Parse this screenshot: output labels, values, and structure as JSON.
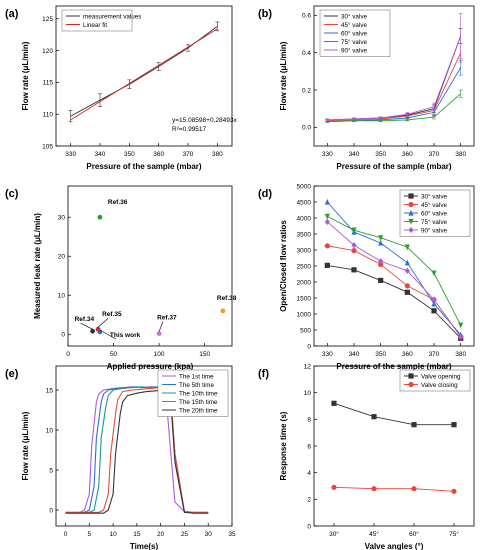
{
  "chart_data": [
    {
      "panel": "(a)",
      "type": "line",
      "xlabel": "Pressure of the sample (mbar)",
      "ylabel": "Flow rate (μL/min)",
      "xlim": [
        325,
        385
      ],
      "ylim": [
        105,
        127
      ],
      "xticks": [
        330,
        340,
        350,
        360,
        370,
        380
      ],
      "yticks": [
        105,
        110,
        115,
        120,
        125
      ],
      "legend_position": "top-left",
      "annotation": [
        "y=15.08598+0.28493x",
        "R²=0.99517"
      ],
      "series": [
        {
          "name": "measurement values",
          "color": "#333333",
          "marker": "none",
          "x": [
            330,
            340,
            350,
            360,
            370,
            380
          ],
          "y": [
            109.7,
            112.2,
            114.7,
            117.5,
            120.4,
            123.8
          ],
          "err": [
            0.9,
            1.0,
            0.7,
            0.6,
            0.5,
            0.7
          ]
        },
        {
          "name": "Linear fit",
          "color": "#d62728",
          "marker": "none",
          "x": [
            330,
            380
          ],
          "y": [
            109.1,
            123.4
          ]
        }
      ]
    },
    {
      "panel": "(b)",
      "type": "line",
      "xlabel": "Pressure of the sample (mbar)",
      "ylabel": "Flow rate (μL/min)",
      "xlim": [
        325,
        385
      ],
      "ylim": [
        -0.1,
        0.65
      ],
      "xticks": [
        330,
        340,
        350,
        360,
        370,
        380
      ],
      "yticks": [
        0.0,
        0.2,
        0.4,
        0.6
      ],
      "legend_position": "top-left",
      "series": [
        {
          "name": "30° valve",
          "color": "#333333",
          "marker": "none",
          "x": [
            330,
            340,
            350,
            360,
            370,
            380
          ],
          "y": [
            0.04,
            0.045,
            0.05,
            0.065,
            0.1,
            0.49
          ],
          "err": [
            0.005,
            0.005,
            0.005,
            0.01,
            0.02,
            0.04
          ]
        },
        {
          "name": "45° valve",
          "color": "#e8473b",
          "marker": "none",
          "x": [
            330,
            340,
            350,
            360,
            370,
            380
          ],
          "y": [
            0.035,
            0.04,
            0.045,
            0.06,
            0.09,
            0.4
          ],
          "err": [
            0.005,
            0.005,
            0.005,
            0.01,
            0.02,
            0.05
          ]
        },
        {
          "name": "60° valve",
          "color": "#2c6fd6",
          "marker": "none",
          "x": [
            330,
            340,
            350,
            360,
            370,
            380
          ],
          "y": [
            0.03,
            0.035,
            0.04,
            0.05,
            0.08,
            0.32
          ],
          "err": [
            0.005,
            0.005,
            0.005,
            0.01,
            0.02,
            0.04
          ]
        },
        {
          "name": "75° valve",
          "color": "#2ca02c",
          "marker": "none",
          "x": [
            330,
            340,
            350,
            360,
            370,
            380
          ],
          "y": [
            0.03,
            0.035,
            0.035,
            0.04,
            0.055,
            0.18
          ],
          "err": [
            0.005,
            0.005,
            0.005,
            0.005,
            0.01,
            0.02
          ]
        },
        {
          "name": "90° valve",
          "color": "#b259d9",
          "marker": "none",
          "x": [
            330,
            340,
            350,
            360,
            370,
            380
          ],
          "y": [
            0.04,
            0.045,
            0.05,
            0.07,
            0.11,
            0.49
          ],
          "err": [
            0.005,
            0.005,
            0.005,
            0.01,
            0.02,
            0.12
          ]
        }
      ]
    },
    {
      "panel": "(c)",
      "type": "scatter",
      "xlabel": "Applied pressure (kpa)",
      "ylabel": "Measured leak rate (μL/min)",
      "xlim": [
        0,
        180
      ],
      "ylim": [
        -3,
        38
      ],
      "xticks": [
        0,
        50,
        100,
        150
      ],
      "yticks": [
        0,
        10,
        20,
        30
      ],
      "points": [
        {
          "label": "Ref.34",
          "x": 27,
          "y": 0.8,
          "color": "#333333"
        },
        {
          "label": "Ref.35",
          "x": 33,
          "y": 1.3,
          "color": "#d62728"
        },
        {
          "label": "This work",
          "x": 35,
          "y": 0.6,
          "color": "#2c6fd6"
        },
        {
          "label": "Ref.36",
          "x": 35,
          "y": 30,
          "color": "#2ca02c"
        },
        {
          "label": "Ref.37",
          "x": 100,
          "y": 0.2,
          "color": "#d06ce0"
        },
        {
          "label": "Ref.38",
          "x": 170,
          "y": 6,
          "color": "#f0a020"
        }
      ]
    },
    {
      "panel": "(d)",
      "type": "line",
      "xlabel": "Pressure of the sample (mbar)",
      "ylabel": "Open/Closed flow ratios",
      "xlim": [
        325,
        385
      ],
      "ylim": [
        0,
        5000
      ],
      "xticks": [
        330,
        340,
        350,
        360,
        370,
        380
      ],
      "yticks": [
        0,
        500,
        1000,
        1500,
        2000,
        2500,
        3000,
        3500,
        4000,
        4500,
        5000
      ],
      "legend_position": "top-right",
      "series": [
        {
          "name": "30° valve",
          "color": "#333333",
          "marker": "square",
          "x": [
            330,
            340,
            350,
            360,
            370,
            380
          ],
          "y": [
            2520,
            2380,
            2050,
            1680,
            1100,
            240
          ]
        },
        {
          "name": "45° valve",
          "color": "#e8473b",
          "marker": "circle",
          "x": [
            330,
            340,
            350,
            360,
            370,
            380
          ],
          "y": [
            3130,
            2980,
            2550,
            1880,
            1450,
            290
          ]
        },
        {
          "name": "60° valve",
          "color": "#2c6fd6",
          "marker": "triangle-up",
          "x": [
            330,
            340,
            350,
            360,
            370,
            380
          ],
          "y": [
            4500,
            3560,
            3220,
            2600,
            1320,
            350
          ]
        },
        {
          "name": "75° valve",
          "color": "#2ca02c",
          "marker": "triangle-down",
          "x": [
            330,
            340,
            350,
            360,
            370,
            380
          ],
          "y": [
            4050,
            3620,
            3380,
            3090,
            2280,
            650
          ]
        },
        {
          "name": "90° valve",
          "color": "#b259d9",
          "marker": "diamond",
          "x": [
            330,
            340,
            350,
            360,
            370,
            380
          ],
          "y": [
            3880,
            3150,
            2650,
            2350,
            1450,
            280
          ]
        }
      ]
    },
    {
      "panel": "(e)",
      "type": "line",
      "xlabel": "Time(s)",
      "ylabel": "Flow rate (μL/min)",
      "xlim": [
        -2,
        35
      ],
      "ylim": [
        -2,
        18
      ],
      "xticks": [
        0,
        5,
        10,
        15,
        20,
        25,
        30,
        35
      ],
      "yticks": [
        0,
        5,
        10,
        15
      ],
      "legend_position": "top-right",
      "series": [
        {
          "name": "The 1st time",
          "color": "#b259d9",
          "marker": "none",
          "x": [
            0,
            3,
            4,
            5,
            5.5,
            6.5,
            7,
            8,
            10,
            12,
            14,
            16,
            18,
            20,
            21,
            22,
            23,
            25,
            27,
            30
          ],
          "y": [
            -0.3,
            -0.3,
            0,
            2,
            8,
            13.5,
            14.5,
            15,
            15.2,
            15.3,
            15.4,
            15.3,
            15.4,
            15.3,
            15.2,
            8,
            1,
            -0.2,
            -0.3,
            -0.3
          ]
        },
        {
          "name": "The 5th time",
          "color": "#2c6fd6",
          "marker": "none",
          "x": [
            0,
            4,
            5,
            6,
            6.5,
            7.5,
            8,
            9,
            11,
            13,
            15,
            17,
            19,
            21,
            22,
            23,
            25,
            27,
            30
          ],
          "y": [
            -0.3,
            -0.3,
            0,
            3,
            9,
            13.5,
            14.5,
            15,
            15.2,
            15.3,
            15.4,
            15.3,
            15.4,
            15.3,
            15.2,
            7,
            -0.2,
            -0.3,
            -0.3
          ]
        },
        {
          "name": "The 10th time",
          "color": "#1a9a8a",
          "marker": "none",
          "x": [
            0,
            5,
            6,
            7,
            7.5,
            8.5,
            9,
            10,
            12,
            14,
            16,
            18,
            20,
            21,
            22,
            23,
            25,
            27,
            30
          ],
          "y": [
            -0.3,
            -0.3,
            0,
            3,
            9,
            13,
            14.3,
            15,
            15.2,
            15.3,
            15.4,
            15.3,
            15.4,
            15.3,
            15.2,
            7,
            -0.2,
            -0.3,
            -0.3
          ]
        },
        {
          "name": "The 15th time",
          "color": "#e84a3b",
          "marker": "none",
          "x": [
            0,
            7,
            8,
            9,
            9.5,
            10.5,
            11,
            12,
            14,
            16,
            18,
            20,
            21,
            22,
            23,
            25,
            27,
            30
          ],
          "y": [
            -0.3,
            -0.3,
            0,
            2,
            7,
            12,
            13.8,
            14.8,
            15,
            15.1,
            15.2,
            15.3,
            15.2,
            15,
            7,
            -0.2,
            -0.3,
            -0.3
          ]
        },
        {
          "name": "The 20th time",
          "color": "#333333",
          "marker": "none",
          "x": [
            0,
            8,
            9,
            10,
            10.5,
            11.5,
            12,
            13,
            15,
            17,
            19,
            21,
            22,
            23,
            25,
            27,
            30
          ],
          "y": [
            -0.4,
            -0.4,
            0,
            2,
            7,
            12,
            13.5,
            14.3,
            14.6,
            14.8,
            14.9,
            15,
            14.8,
            6,
            -0.3,
            -0.4,
            -0.4
          ]
        }
      ]
    },
    {
      "panel": "(f)",
      "type": "line",
      "xlabel": "Valve angles (°)",
      "ylabel": "Response time (s)",
      "categories": [
        "30°",
        "45°",
        "60°",
        "75°"
      ],
      "ylim": [
        0,
        12
      ],
      "yticks": [
        0,
        2,
        4,
        6,
        8,
        10,
        12
      ],
      "legend_position": "top-right",
      "series": [
        {
          "name": "Valve opening",
          "color": "#333333",
          "marker": "square",
          "values": [
            9.2,
            8.2,
            7.6,
            7.6
          ]
        },
        {
          "name": "Valve closing",
          "color": "#e8473b",
          "marker": "circle",
          "values": [
            2.9,
            2.8,
            2.8,
            2.6
          ]
        }
      ]
    }
  ]
}
